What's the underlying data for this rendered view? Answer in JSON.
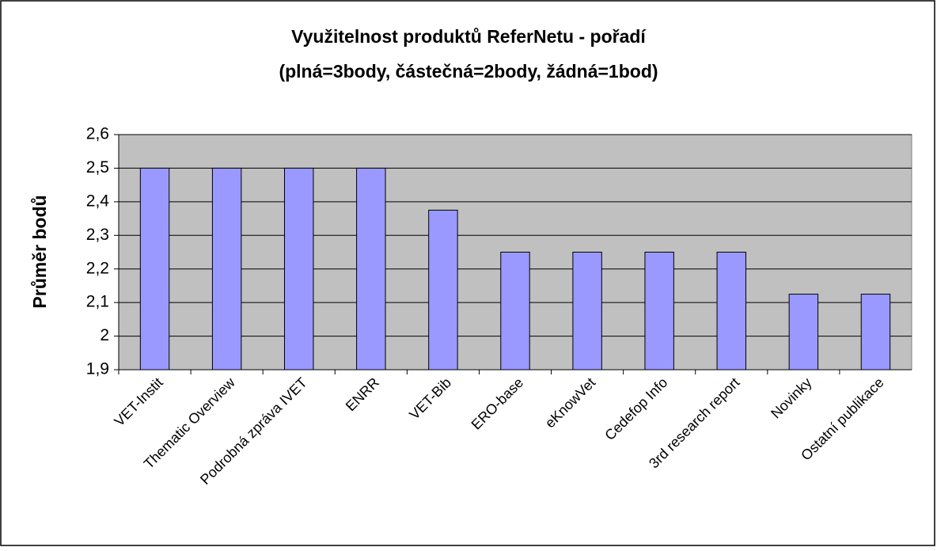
{
  "chart_data": {
    "type": "bar",
    "title": [
      "Využitelnost produktů ReferNetu - pořadí",
      "(plná=3body, částečná=2body, žádná=1bod)"
    ],
    "y_label": "Průměr bodů",
    "categories": [
      "VET-Instit",
      "Thematic Overview",
      "Podrobná zpráva IVET",
      "ENRR",
      "VET-Bib",
      "ERO-base",
      "eKnowVet",
      "Cedefop Info",
      "3rd research report",
      "Novinky",
      "Ostatní publikace"
    ],
    "values": [
      2.5,
      2.5,
      2.5,
      2.5,
      2.375,
      2.25,
      2.25,
      2.25,
      2.25,
      2.125,
      2.125
    ],
    "color": "#9999ff",
    "ylim": [
      1.9,
      2.6
    ],
    "yticks": [
      {
        "value": 1.9,
        "label": "1,9"
      },
      2,
      {
        "value": 2.1,
        "label": "2,1"
      },
      {
        "value": 2.2,
        "label": "2,2"
      },
      {
        "value": 2.3,
        "label": "2,3"
      },
      {
        "value": 2.4,
        "label": "2,4"
      },
      {
        "value": 2.5,
        "label": "2,5"
      },
      {
        "value": 2.6,
        "label": "2,6"
      }
    ],
    "grid": true
  }
}
